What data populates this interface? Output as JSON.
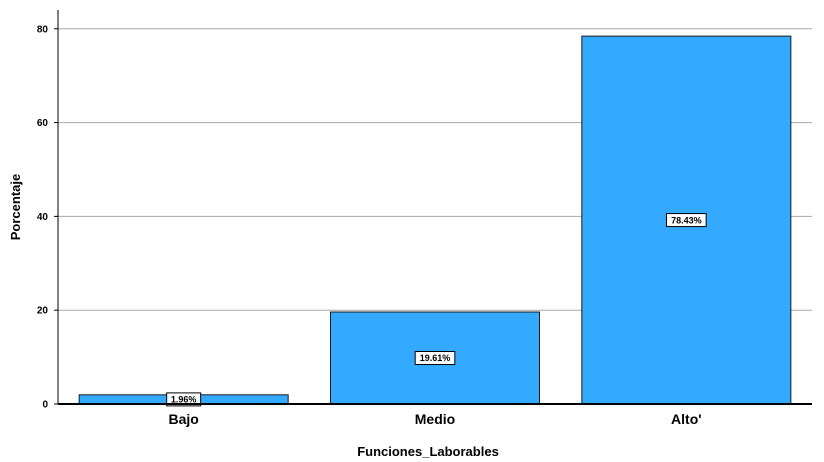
{
  "chart_data": {
    "type": "bar",
    "categories": [
      "Bajo",
      "Medio",
      "Alto'"
    ],
    "values": [
      1.96,
      19.61,
      78.43
    ],
    "data_labels": [
      "1.96%",
      "19.61%",
      "78.43%"
    ],
    "title": "",
    "xlabel": "Funciones_Laborables",
    "ylabel": "Porcentaje",
    "ylim": [
      0,
      84
    ],
    "yticks": [
      0,
      20,
      40,
      60,
      80
    ],
    "ytick_labels": [
      "0",
      "20",
      "40",
      "60",
      "80"
    ],
    "grid": true,
    "bar_color": "#33aaff",
    "bar_edge_color": "#1a1a1a"
  }
}
